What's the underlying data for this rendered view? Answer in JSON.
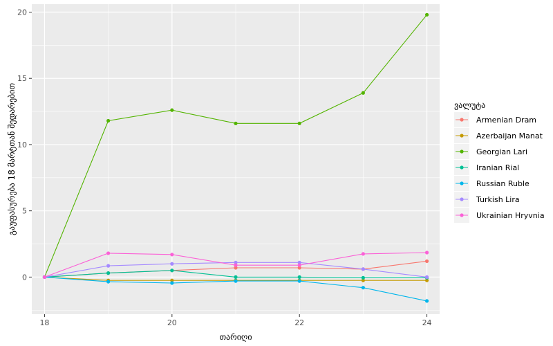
{
  "chart_data": {
    "type": "line",
    "xlabel": "თარიღი",
    "ylabel": "გაუფასურება 18 მარტთან შედარებით",
    "legend_title": "ვალუტა",
    "legend_position": "right",
    "grid": true,
    "xlim": [
      17.8,
      24.2
    ],
    "ylim": [
      -2.8,
      20.6
    ],
    "x_ticks": [
      18,
      20,
      22,
      24
    ],
    "x_tick_labels": [
      "18",
      "20",
      "22",
      "24"
    ],
    "y_ticks": [
      0,
      5,
      10,
      15,
      20
    ],
    "y_tick_labels": [
      "0",
      "5",
      "10",
      "15",
      "20"
    ],
    "x": [
      18,
      19,
      20,
      21,
      22,
      23,
      24
    ],
    "series": [
      {
        "name": "Armenian Dram",
        "color": "#F8766D",
        "values": [
          0,
          0.3,
          0.5,
          0.7,
          0.7,
          0.6,
          1.2
        ]
      },
      {
        "name": "Azerbaijan Manat",
        "color": "#C49A00",
        "values": [
          0,
          -0.25,
          -0.25,
          -0.25,
          -0.25,
          -0.25,
          -0.25
        ]
      },
      {
        "name": "Georgian Lari",
        "color": "#53B400",
        "values": [
          0,
          11.8,
          12.6,
          11.6,
          11.6,
          13.9,
          19.8
        ]
      },
      {
        "name": "Iranian Rial",
        "color": "#00C094",
        "values": [
          0,
          0.3,
          0.5,
          0,
          0,
          -0.05,
          -0.05
        ]
      },
      {
        "name": "Russian Ruble",
        "color": "#00B6EB",
        "values": [
          0,
          -0.35,
          -0.45,
          -0.3,
          -0.3,
          -0.8,
          -1.8
        ]
      },
      {
        "name": "Turkish Lira",
        "color": "#A58AFF",
        "values": [
          0,
          0.85,
          1.0,
          1.1,
          1.1,
          0.6,
          0
        ]
      },
      {
        "name": "Ukrainian Hryvnia",
        "color": "#FB61D7",
        "values": [
          0,
          1.8,
          1.7,
          0.9,
          0.9,
          1.75,
          1.85
        ]
      }
    ]
  }
}
